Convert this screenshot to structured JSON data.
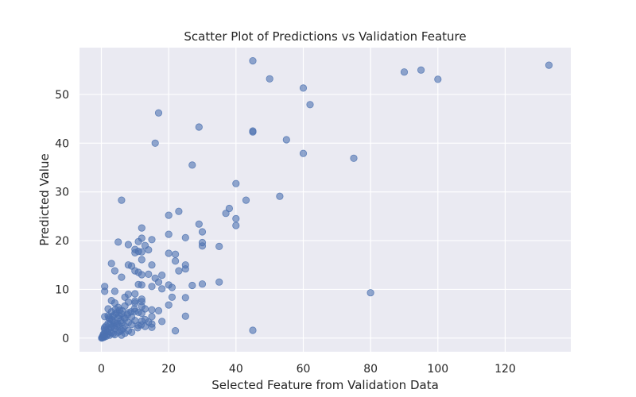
{
  "chart_data": {
    "type": "scatter",
    "title": "Scatter Plot of Predictions vs Validation Feature",
    "xlabel": "Selected Feature from Validation Data",
    "ylabel": "Predicted Value",
    "xlim": [
      -6.5,
      139.5
    ],
    "ylim": [
      -2.8,
      59.6
    ],
    "xticks": [
      0,
      20,
      40,
      60,
      80,
      100,
      120
    ],
    "yticks": [
      0,
      10,
      20,
      30,
      40,
      50
    ],
    "grid": true,
    "style": "seaborn-darkgrid",
    "background_color": "#eaeaf2",
    "point_color": "#4c72b0",
    "point_alpha": 0.6,
    "points": [
      [
        133,
        56.0
      ],
      [
        95,
        55.0
      ],
      [
        90,
        54.6
      ],
      [
        100,
        53.1
      ],
      [
        45,
        56.9
      ],
      [
        50,
        53.2
      ],
      [
        60,
        51.3
      ],
      [
        62,
        47.9
      ],
      [
        17,
        46.2
      ],
      [
        29,
        43.3
      ],
      [
        45,
        42.5
      ],
      [
        45,
        42.3
      ],
      [
        55,
        40.7
      ],
      [
        16,
        40.0
      ],
      [
        60,
        37.9
      ],
      [
        75,
        36.9
      ],
      [
        27,
        35.5
      ],
      [
        40,
        31.7
      ],
      [
        6,
        28.3
      ],
      [
        43,
        28.3
      ],
      [
        53,
        29.1
      ],
      [
        38,
        26.6
      ],
      [
        37,
        25.6
      ],
      [
        40,
        24.5
      ],
      [
        23,
        26.0
      ],
      [
        20,
        25.2
      ],
      [
        40,
        23.1
      ],
      [
        29,
        23.4
      ],
      [
        12,
        22.6
      ],
      [
        30,
        21.8
      ],
      [
        20,
        21.3
      ],
      [
        25,
        20.6
      ],
      [
        12,
        20.5
      ],
      [
        15,
        20.2
      ],
      [
        5,
        19.7
      ],
      [
        11,
        19.8
      ],
      [
        30,
        19.6
      ],
      [
        8,
        19.2
      ],
      [
        13,
        19.0
      ],
      [
        35,
        18.8
      ],
      [
        30,
        18.9
      ],
      [
        10,
        18.2
      ],
      [
        12,
        17.7
      ],
      [
        14,
        18.1
      ],
      [
        20,
        17.4
      ],
      [
        22,
        17.2
      ],
      [
        10,
        17.5
      ],
      [
        11,
        17.8
      ],
      [
        12,
        16.1
      ],
      [
        22,
        15.8
      ],
      [
        3,
        15.3
      ],
      [
        8,
        15.0
      ],
      [
        9,
        14.8
      ],
      [
        15,
        15.0
      ],
      [
        25,
        15.0
      ],
      [
        23,
        13.8
      ],
      [
        25,
        14.2
      ],
      [
        4,
        13.8
      ],
      [
        10,
        13.8
      ],
      [
        11,
        13.5
      ],
      [
        12,
        13.0
      ],
      [
        14,
        13.1
      ],
      [
        16,
        12.3
      ],
      [
        18,
        12.9
      ],
      [
        6,
        12.5
      ],
      [
        17,
        11.5
      ],
      [
        11,
        11.0
      ],
      [
        12,
        10.9
      ],
      [
        15,
        10.6
      ],
      [
        20,
        10.9
      ],
      [
        21,
        10.4
      ],
      [
        27,
        10.8
      ],
      [
        30,
        11.1
      ],
      [
        35,
        11.5
      ],
      [
        1,
        10.6
      ],
      [
        18,
        10.1
      ],
      [
        1,
        9.6
      ],
      [
        4,
        9.6
      ],
      [
        8,
        9.0
      ],
      [
        10,
        9.1
      ],
      [
        80,
        9.3
      ],
      [
        21,
        8.4
      ],
      [
        25,
        8.3
      ],
      [
        7,
        8.4
      ],
      [
        12,
        8.0
      ],
      [
        3,
        7.7
      ],
      [
        4,
        7.2
      ],
      [
        10,
        7.6
      ],
      [
        12,
        7.5
      ],
      [
        8,
        7.4
      ],
      [
        10,
        7.2
      ],
      [
        20,
        6.8
      ],
      [
        12,
        6.5
      ],
      [
        13,
        6.0
      ],
      [
        2,
        6.0
      ],
      [
        5,
        6.3
      ],
      [
        7,
        6.6
      ],
      [
        10,
        5.5
      ],
      [
        11,
        5.3
      ],
      [
        15,
        5.8
      ],
      [
        3,
        5.4
      ],
      [
        6,
        5.0
      ],
      [
        8,
        5.2
      ],
      [
        12,
        5.1
      ],
      [
        17,
        5.6
      ],
      [
        4,
        4.9
      ],
      [
        1,
        4.4
      ],
      [
        2,
        4.6
      ],
      [
        9,
        4.3
      ],
      [
        25,
        4.5
      ],
      [
        15,
        4.4
      ],
      [
        5,
        4.1
      ],
      [
        7,
        4.0
      ],
      [
        13,
        3.8
      ],
      [
        10,
        3.6
      ],
      [
        12,
        3.5
      ],
      [
        14,
        3.3
      ],
      [
        18,
        3.4
      ],
      [
        15,
        2.9
      ],
      [
        3,
        3.8
      ],
      [
        4,
        3.3
      ],
      [
        6,
        3.1
      ],
      [
        8,
        3.2
      ],
      [
        2,
        3.0
      ],
      [
        11,
        2.6
      ],
      [
        13,
        2.4
      ],
      [
        15,
        2.2
      ],
      [
        5,
        2.8
      ],
      [
        7,
        2.5
      ],
      [
        9,
        2.8
      ],
      [
        3,
        2.3
      ],
      [
        1,
        2.2
      ],
      [
        2,
        1.8
      ],
      [
        4,
        1.9
      ],
      [
        6,
        1.6
      ],
      [
        8,
        1.5
      ],
      [
        22,
        1.5
      ],
      [
        45,
        1.6
      ],
      [
        5,
        1.2
      ],
      [
        7,
        1.0
      ],
      [
        9,
        1.2
      ],
      [
        3,
        1.1
      ],
      [
        1,
        1.0
      ],
      [
        2,
        0.8
      ],
      [
        4,
        0.7
      ],
      [
        6,
        0.6
      ],
      [
        0.5,
        0.5
      ],
      [
        1.5,
        0.4
      ],
      [
        0.3,
        0.3
      ],
      [
        0.8,
        0.2
      ],
      [
        0.2,
        0.1
      ],
      [
        0.1,
        0.0
      ],
      [
        0.4,
        0.1
      ],
      [
        1.0,
        0.3
      ],
      [
        2.5,
        0.6
      ],
      [
        3.5,
        0.9
      ],
      [
        5.5,
        1.4
      ],
      [
        6.5,
        2.0
      ],
      [
        4.5,
        2.6
      ],
      [
        3.2,
        3.6
      ],
      [
        2.2,
        4.2
      ],
      [
        5.2,
        4.6
      ],
      [
        6.2,
        5.6
      ],
      [
        4.2,
        5.9
      ],
      [
        2.8,
        2.1
      ],
      [
        1.8,
        1.3
      ],
      [
        0.6,
        0.8
      ],
      [
        1.2,
        1.6
      ],
      [
        0.9,
        1.9
      ],
      [
        2.6,
        2.9
      ],
      [
        3.8,
        2.4
      ],
      [
        4.8,
        3.0
      ],
      [
        5.8,
        3.6
      ],
      [
        6.8,
        4.2
      ],
      [
        7.8,
        4.8
      ],
      [
        8.8,
        5.4
      ],
      [
        9.8,
        6.0
      ],
      [
        10.8,
        2.1
      ],
      [
        11.8,
        2.7
      ],
      [
        3.4,
        4.5
      ],
      [
        4.4,
        5.1
      ],
      [
        5.4,
        5.7
      ],
      [
        2.4,
        3.9
      ],
      [
        1.4,
        2.5
      ]
    ]
  }
}
